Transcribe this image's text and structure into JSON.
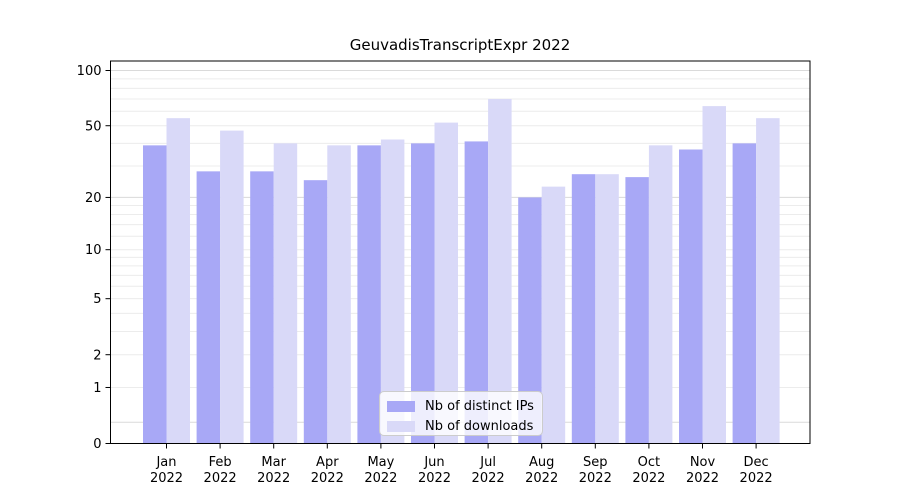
{
  "title": "GeuvadisTranscriptExpr 2022",
  "legend": {
    "items": [
      {
        "label": "Nb of distinct IPs",
        "color": "#a8a8f6"
      },
      {
        "label": "Nb of downloads",
        "color": "#d9d9f8"
      }
    ],
    "position": "lower center"
  },
  "chart_data": {
    "type": "bar",
    "title": "GeuvadisTranscriptExpr 2022",
    "categories": [
      "Jan",
      "Feb",
      "Mar",
      "Apr",
      "May",
      "Jun",
      "Jul",
      "Aug",
      "Sep",
      "Oct",
      "Nov",
      "Dec"
    ],
    "year_label": "2022",
    "series": [
      {
        "name": "Nb of distinct IPs",
        "color": "#a8a8f6",
        "values": [
          39,
          28,
          28,
          25,
          39,
          40,
          41,
          20,
          27,
          26,
          37,
          40
        ]
      },
      {
        "name": "Nb of downloads",
        "color": "#d9d9f8",
        "values": [
          55,
          47,
          40,
          39,
          42,
          52,
          70,
          23,
          27,
          39,
          64,
          55
        ]
      }
    ],
    "xlabel": "",
    "ylabel": "",
    "y_scale": "log10(1+x)",
    "y_ticks": [
      0,
      1,
      2,
      5,
      10,
      20,
      50,
      100
    ],
    "y_gridlines_minor": [
      1,
      2,
      3,
      4,
      5,
      6,
      7,
      8,
      9,
      10,
      12,
      14,
      16,
      18,
      30,
      40,
      50,
      60,
      70,
      80,
      90
    ],
    "y_gridlines_major": [
      0.3,
      20,
      100
    ],
    "ylim": [
      0,
      113
    ],
    "grid": true,
    "legend_position": "lower center"
  },
  "colors": {
    "grid_minor": "#ececec",
    "grid_major": "#dadada",
    "axis": "#000000",
    "text": "#000000",
    "background": "#ffffff"
  }
}
